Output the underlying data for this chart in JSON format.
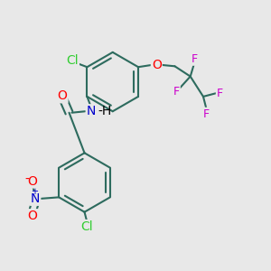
{
  "bg_color": "#e8e8e8",
  "bond_color": "#2d6b5e",
  "bond_width": 1.5,
  "atom_colors": {
    "Cl": "#32cd32",
    "O": "#ff0000",
    "N": "#0000cc",
    "F": "#cc00cc",
    "H": "#000000",
    "C": "#2d6b5e"
  },
  "font_size": 10,
  "font_size_small": 9
}
